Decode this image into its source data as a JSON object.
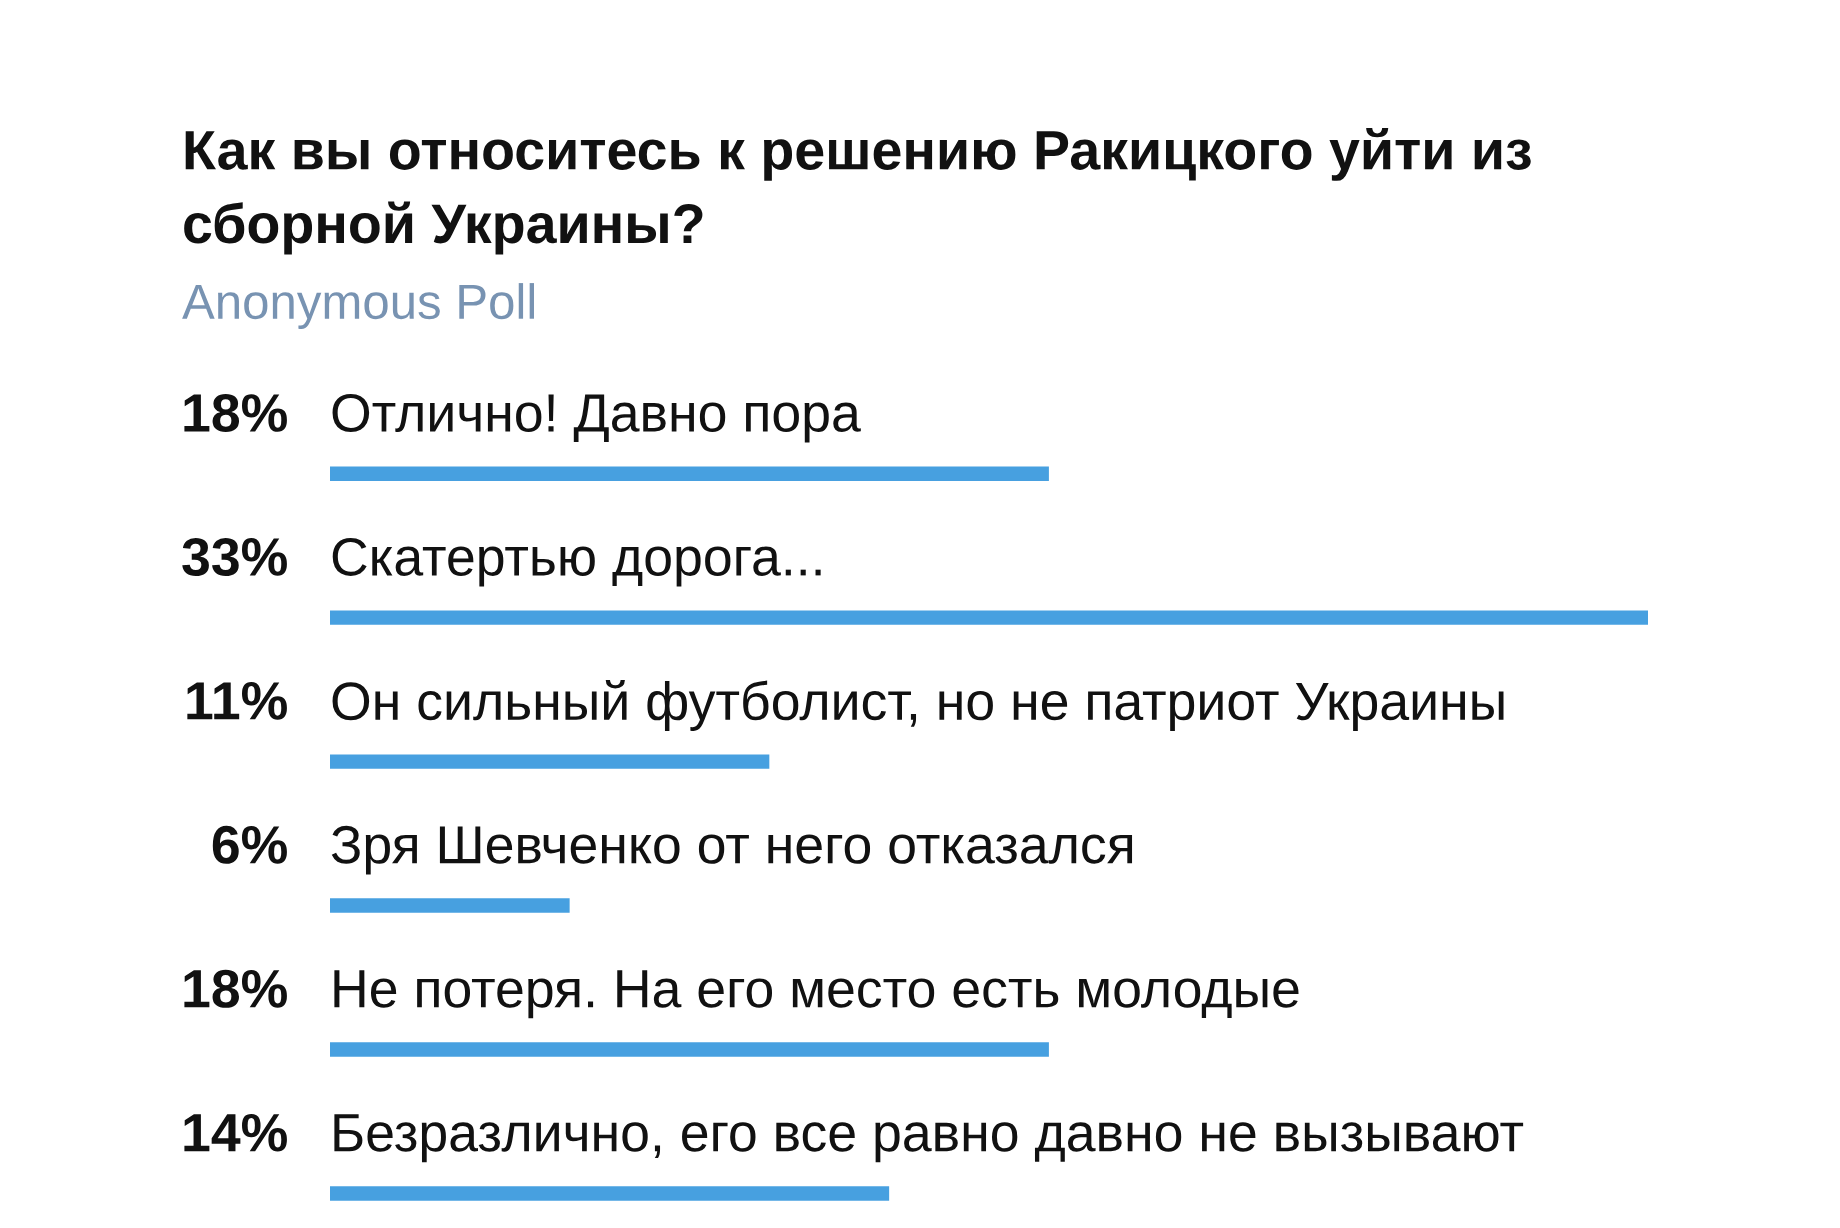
{
  "chart_data": {
    "type": "bar",
    "orientation": "horizontal",
    "title": "Как вы относитесь к решению Ракицкого уйти из сборной Украины?",
    "subtitle": "Anonymous Poll",
    "categories": [
      "Отлично! Давно пора",
      "Скатертью дорога...",
      "Он сильный футболист, но не патриот Украины",
      "Зря Шевченко от него отказался",
      "Не потеря. На его место есть молодые",
      "Безразлично, его все равно давно не вызывают"
    ],
    "values": [
      18,
      33,
      11,
      6,
      18,
      14
    ],
    "value_labels": [
      "18%",
      "33%",
      "11%",
      "6%",
      "18%",
      "14%"
    ],
    "color": "#47a0e0",
    "xlim": [
      0,
      33
    ],
    "tick_labels": "y"
  }
}
